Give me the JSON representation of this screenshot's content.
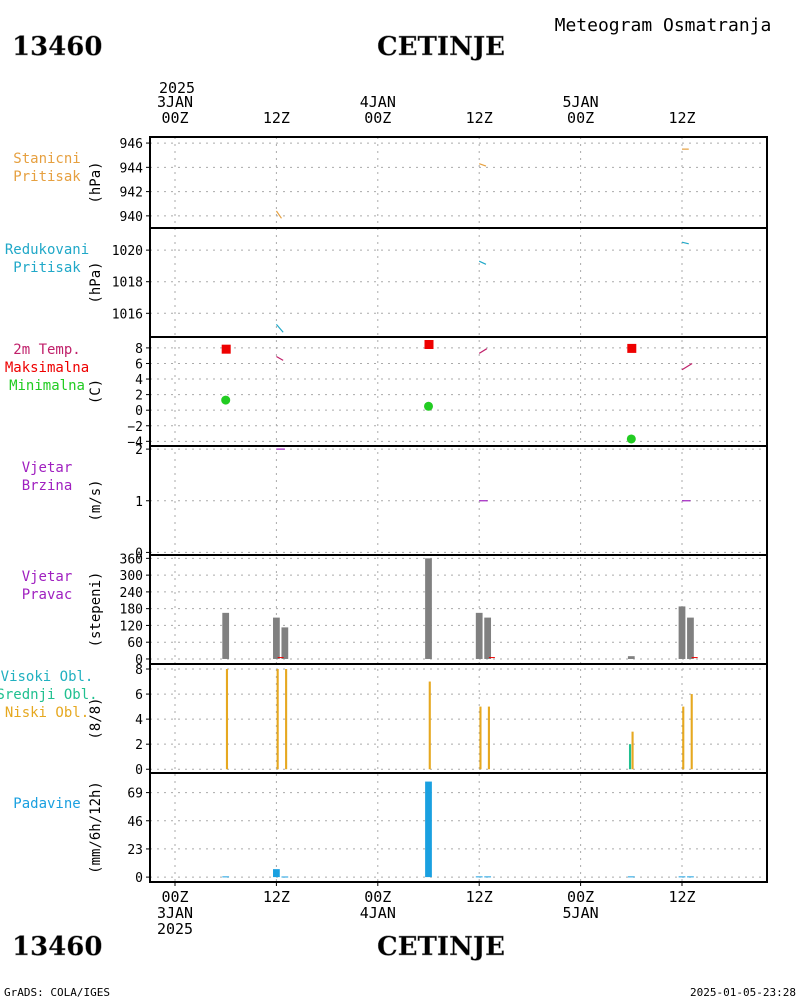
{
  "header": {
    "station_id": "13460",
    "station_name": "CETINJE",
    "product": "Meteogram Osmatranja",
    "footer_left": "GrADS: COLA/IGES",
    "footer_right": "2025-01-05-23:28"
  },
  "time_axis": {
    "top_year": "2025",
    "labels": [
      {
        "t": 0,
        "top": [
          "3JAN",
          "00Z"
        ],
        "bottom": [
          "00Z",
          "3JAN",
          "2025"
        ]
      },
      {
        "t": 12,
        "top": [
          "12Z"
        ],
        "bottom": [
          "12Z"
        ]
      },
      {
        "t": 24,
        "top": [
          "4JAN",
          "00Z"
        ],
        "bottom": [
          "00Z",
          "4JAN"
        ]
      },
      {
        "t": 36,
        "top": [
          "12Z"
        ],
        "bottom": [
          "12Z"
        ]
      },
      {
        "t": 48,
        "top": [
          "5JAN",
          "00Z"
        ],
        "bottom": [
          "00Z",
          "5JAN"
        ]
      },
      {
        "t": 60,
        "top": [
          "12Z"
        ],
        "bottom": [
          "12Z"
        ]
      }
    ]
  },
  "colors": {
    "stanicni": "#e6a040",
    "redukovani": "#20a8c8",
    "temp": "#c0206a",
    "max": "#ee0000",
    "min": "#22cc22",
    "wind": "#a020c0",
    "dir_bar": "#808080",
    "visoki": "#20b0c0",
    "srednji": "#20c090",
    "niski": "#e6a820",
    "padavine": "#1aa0e0",
    "grid": "#aaaaaa"
  },
  "chart_data": [
    {
      "type": "line",
      "id": "stanicni",
      "labels": [
        "Stanicni",
        "Pritisak"
      ],
      "label_colors": [
        "stanicni",
        "stanicni"
      ],
      "ylabel": "(hPa)",
      "ylim": [
        939,
        946.5
      ],
      "yticks": [
        940,
        942,
        944,
        946
      ],
      "series": [
        {
          "color": "stanicni",
          "segments": [
            [
              [
                12,
                940.4
              ],
              [
                12.6,
                939.8
              ]
            ],
            [
              [
                36,
                944.3
              ],
              [
                36.8,
                944.1
              ]
            ],
            [
              [
                60,
                945.5
              ],
              [
                60.8,
                945.5
              ]
            ]
          ]
        }
      ]
    },
    {
      "type": "line",
      "id": "redukovani",
      "labels": [
        "Redukovani",
        "Pritisak"
      ],
      "label_colors": [
        "redukovani",
        "redukovani"
      ],
      "ylabel": "(hPa)",
      "ylim": [
        1014.5,
        1021.4
      ],
      "yticks": [
        1016,
        1018,
        1020
      ],
      "series": [
        {
          "color": "redukovani",
          "segments": [
            [
              [
                12,
                1015.3
              ],
              [
                12.8,
                1014.8
              ]
            ],
            [
              [
                36,
                1019.3
              ],
              [
                36.8,
                1019.1
              ]
            ],
            [
              [
                60,
                1020.5
              ],
              [
                60.8,
                1020.4
              ]
            ]
          ]
        }
      ]
    },
    {
      "type": "line",
      "id": "temperatura",
      "labels": [
        "2m Temp.",
        "Maksimalna",
        "Minimalna"
      ],
      "label_colors": [
        "temp",
        "max",
        "min"
      ],
      "ylabel": "(C)",
      "ylim": [
        -4.6,
        9.4
      ],
      "yticks": [
        -4,
        -2,
        0,
        2,
        4,
        6,
        8
      ],
      "yticklabels": [
        "−4",
        "−2",
        "0",
        "2",
        "4",
        "6",
        "8"
      ],
      "series": [
        {
          "color": "temp",
          "segments": [
            [
              [
                12,
                6.9
              ],
              [
                12.8,
                6.4
              ]
            ],
            [
              [
                36,
                7.3
              ],
              [
                36.9,
                7.9
              ]
            ],
            [
              [
                60,
                5.2
              ],
              [
                61.2,
                6.0
              ]
            ]
          ]
        }
      ],
      "markers": [
        {
          "shape": "square",
          "color": "max",
          "points": [
            [
              6,
              7.9
            ],
            [
              30,
              8.5
            ],
            [
              54,
              8.0
            ]
          ]
        },
        {
          "shape": "circle",
          "color": "min",
          "points": [
            [
              6,
              1.3
            ],
            [
              30,
              0.5
            ],
            [
              54,
              -3.7
            ]
          ]
        }
      ]
    },
    {
      "type": "line",
      "id": "vjetar_brzina",
      "labels": [
        "Vjetar",
        "Brzina"
      ],
      "label_colors": [
        "wind",
        "wind"
      ],
      "ylabel": "(m/s)",
      "ylim": [
        -0.05,
        2.06
      ],
      "yticks": [
        0,
        1,
        2
      ],
      "series": [
        {
          "color": "wind",
          "segments": [
            [
              [
                12,
                2.0
              ],
              [
                13,
                2.0
              ]
            ],
            [
              [
                36,
                1.0
              ],
              [
                37,
                1.0
              ]
            ],
            [
              [
                60,
                1.0
              ],
              [
                61,
                1.0
              ]
            ]
          ]
        }
      ]
    },
    {
      "type": "bar",
      "id": "vjetar_pravac",
      "labels": [
        "Vjetar",
        "Pravac"
      ],
      "label_colors": [
        "wind",
        "wind"
      ],
      "ylabel": "(stepeni)",
      "ylim": [
        -18,
        372
      ],
      "yticks": [
        0,
        60,
        120,
        180,
        240,
        300,
        360
      ],
      "bars": [
        {
          "color": "dir_bar",
          "points": [
            [
              6,
              165
            ],
            [
              12,
              148
            ],
            [
              13,
              113
            ],
            [
              30,
              360
            ],
            [
              36,
              165
            ],
            [
              37,
              148
            ],
            [
              54,
              10
            ],
            [
              60,
              188
            ],
            [
              61,
              148
            ]
          ],
          "width_h": 0.8
        }
      ],
      "ticks": {
        "color": "max",
        "points": [
          [
            12.5,
            5
          ],
          [
            37.5,
            5
          ],
          [
            61.5,
            5
          ]
        ]
      }
    },
    {
      "type": "bar",
      "id": "oblaci",
      "labels": [
        "Visoki Obl.",
        "Srednji Obl.",
        "Niski Obl."
      ],
      "label_colors": [
        "visoki",
        "srednji",
        "niski"
      ],
      "ylabel": "(8/8)",
      "ylim": [
        -0.3,
        8.4
      ],
      "yticks": [
        0,
        2,
        4,
        6,
        8
      ],
      "bars": [
        {
          "color": "srednji",
          "points": [
            [
              54,
              2
            ]
          ],
          "width_h": 0.25,
          "offset_h": -0.15
        },
        {
          "color": "niski",
          "points": [
            [
              6,
              8
            ],
            [
              12,
              8
            ],
            [
              13,
              8
            ],
            [
              30,
              7
            ],
            [
              36,
              5
            ],
            [
              37,
              5
            ],
            [
              54,
              3
            ],
            [
              60,
              5
            ],
            [
              61,
              6
            ]
          ],
          "width_h": 0.25,
          "offset_h": 0.15
        }
      ]
    },
    {
      "type": "bar",
      "id": "padavine",
      "labels": [
        "Padavine"
      ],
      "label_colors": [
        "padavine"
      ],
      "ylabel": "(mm/6h/12h)",
      "ylim": [
        -4,
        85
      ],
      "yticks": [
        0,
        23,
        46,
        69
      ],
      "bars": [
        {
          "color": "padavine",
          "points": [
            [
              6,
              0.6
            ],
            [
              12,
              6.5
            ],
            [
              13,
              0.5
            ],
            [
              30,
              78
            ],
            [
              36,
              0.6
            ],
            [
              37,
              0.6
            ],
            [
              54,
              0.6
            ],
            [
              60,
              0.6
            ],
            [
              61,
              0.6
            ]
          ],
          "width_h": 0.8
        }
      ]
    }
  ]
}
